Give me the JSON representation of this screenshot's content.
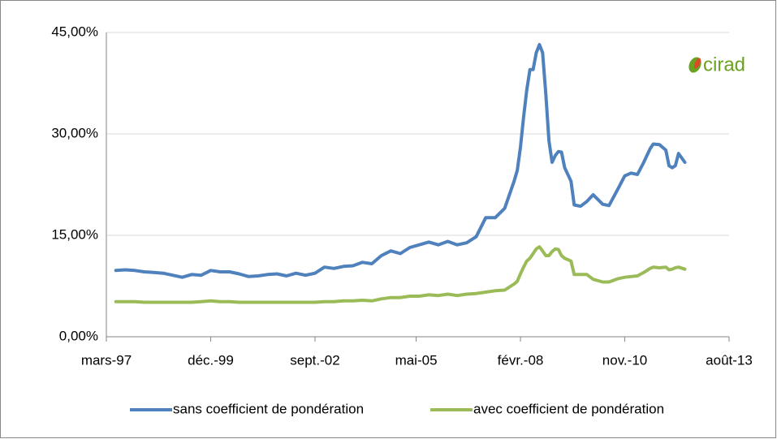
{
  "chart_data": {
    "type": "line",
    "logo": "cirad",
    "x": [
      "1997-06",
      "1997-09",
      "1997-12",
      "1998-03",
      "1998-06",
      "1998-09",
      "1998-12",
      "1999-03",
      "1999-06",
      "1999-09",
      "1999-12",
      "2000-03",
      "2000-06",
      "2000-09",
      "2000-12",
      "2001-03",
      "2001-06",
      "2001-09",
      "2001-12",
      "2002-03",
      "2002-06",
      "2002-09",
      "2002-12",
      "2003-03",
      "2003-06",
      "2003-09",
      "2003-12",
      "2004-03",
      "2004-06",
      "2004-09",
      "2004-12",
      "2005-03",
      "2005-06",
      "2005-09",
      "2005-12",
      "2006-03",
      "2006-06",
      "2006-09",
      "2006-12",
      "2007-03",
      "2007-06",
      "2007-09",
      "2007-12",
      "2008-01",
      "2008-02",
      "2008-03",
      "2008-04",
      "2008-05",
      "2008-06",
      "2008-07",
      "2008-08",
      "2008-09",
      "2008-10",
      "2008-11",
      "2008-12",
      "2009-01",
      "2009-02",
      "2009-03",
      "2009-04",
      "2009-06",
      "2009-07",
      "2009-09",
      "2009-11",
      "2010-01",
      "2010-04",
      "2010-06",
      "2010-09",
      "2010-11",
      "2011-01",
      "2011-03",
      "2011-05",
      "2011-07",
      "2011-08",
      "2011-10",
      "2011-12",
      "2012-01",
      "2012-02",
      "2012-03",
      "2012-04",
      "2012-06"
    ],
    "series": [
      {
        "name": "sans coefficient de pondération",
        "color": "#4f81bd",
        "values": [
          9.8,
          9.9,
          9.8,
          9.6,
          9.5,
          9.4,
          9.1,
          8.8,
          9.2,
          9.1,
          9.8,
          9.6,
          9.6,
          9.3,
          8.9,
          9.0,
          9.2,
          9.3,
          9.0,
          9.4,
          9.1,
          9.4,
          10.3,
          10.1,
          10.4,
          10.5,
          11.0,
          10.8,
          12.0,
          12.7,
          12.3,
          13.2,
          13.6,
          14.0,
          13.6,
          14.1,
          13.6,
          13.9,
          14.8,
          17.6,
          17.6,
          19.0,
          23.0,
          24.6,
          28.0,
          32.5,
          36.5,
          39.5,
          39.5,
          42.0,
          43.2,
          42.0,
          36.0,
          29.0,
          25.8,
          26.8,
          27.4,
          27.3,
          25.0,
          23.0,
          19.5,
          19.3,
          20.0,
          21.0,
          19.6,
          19.4,
          22.0,
          23.8,
          24.2,
          24.0,
          25.8,
          27.8,
          28.5,
          28.4,
          27.6,
          25.3,
          25.0,
          25.3,
          27.1,
          25.8
        ]
      },
      {
        "name": "avec coefficient de pondération",
        "color": "#9bbb59",
        "values": [
          5.2,
          5.2,
          5.2,
          5.1,
          5.1,
          5.1,
          5.1,
          5.1,
          5.1,
          5.2,
          5.3,
          5.2,
          5.2,
          5.1,
          5.1,
          5.1,
          5.1,
          5.1,
          5.1,
          5.1,
          5.1,
          5.1,
          5.2,
          5.2,
          5.3,
          5.3,
          5.4,
          5.3,
          5.6,
          5.8,
          5.8,
          6.0,
          6.0,
          6.2,
          6.1,
          6.3,
          6.1,
          6.3,
          6.4,
          6.6,
          6.8,
          6.9,
          7.8,
          8.2,
          9.3,
          10.3,
          11.2,
          11.6,
          12.3,
          13.0,
          13.3,
          12.7,
          12.0,
          12.0,
          12.6,
          13.0,
          12.9,
          12.0,
          11.6,
          11.2,
          9.2,
          9.2,
          9.2,
          8.5,
          8.1,
          8.1,
          8.6,
          8.8,
          8.9,
          9.0,
          9.5,
          10.1,
          10.3,
          10.2,
          10.3,
          9.9,
          10.0,
          10.2,
          10.3,
          10.0
        ]
      }
    ],
    "xlim": [
      "1997-03",
      "2013-08"
    ],
    "xticks": [
      {
        "value": "1997-03",
        "label": "mars-97"
      },
      {
        "value": "1999-12",
        "label": "déc.-99"
      },
      {
        "value": "2002-09",
        "label": "sept.-02"
      },
      {
        "value": "2005-05",
        "label": "mai-05"
      },
      {
        "value": "2008-02",
        "label": "févr.-08"
      },
      {
        "value": "2010-11",
        "label": "nov.-10"
      },
      {
        "value": "2013-08",
        "label": "août-13"
      }
    ],
    "ylim": [
      0,
      45
    ],
    "yticks": [
      {
        "value": 0,
        "label": "0,00%"
      },
      {
        "value": 15,
        "label": "15,00%"
      },
      {
        "value": 30,
        "label": "30,00%"
      },
      {
        "value": 45,
        "label": "45,00%"
      }
    ],
    "grid": true,
    "legend": "bottom"
  }
}
